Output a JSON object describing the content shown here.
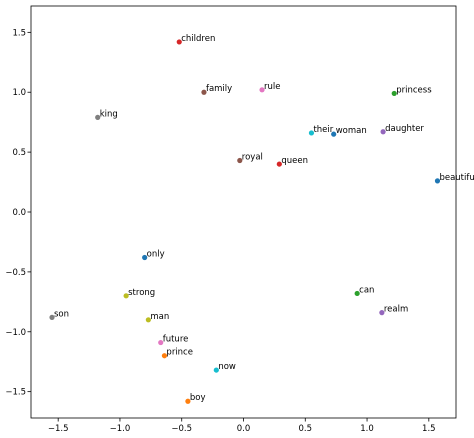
{
  "chart_data": {
    "type": "scatter",
    "title": "",
    "xlabel": "",
    "ylabel": "",
    "xlim": [
      -1.72,
      1.72
    ],
    "ylim": [
      -1.72,
      1.72
    ],
    "grid": false,
    "x_ticks": [
      -1.5,
      -1.0,
      -0.5,
      0.0,
      0.5,
      1.0,
      1.5
    ],
    "x_tick_labels": [
      "−1.5",
      "−1.0",
      "−0.5",
      "0.0",
      "0.5",
      "1.0",
      "1.5"
    ],
    "y_ticks": [
      1.5,
      1.0,
      0.5,
      0.0,
      -0.5,
      -1.0,
      -1.5
    ],
    "y_tick_labels": [
      "1.5",
      "1.0",
      "0.5",
      "0.0",
      "−0.5",
      "−1.0",
      "−1.5"
    ],
    "points": [
      {
        "label": "children",
        "x": -0.52,
        "y": 1.42,
        "color": "#d62728"
      },
      {
        "label": "family",
        "x": -0.32,
        "y": 1.0,
        "color": "#8c564b"
      },
      {
        "label": "rule",
        "x": 0.15,
        "y": 1.02,
        "color": "#e377c2"
      },
      {
        "label": "princess",
        "x": 1.22,
        "y": 0.99,
        "color": "#2ca02c"
      },
      {
        "label": "king",
        "x": -1.18,
        "y": 0.79,
        "color": "#7f7f7f"
      },
      {
        "label": "their",
        "x": 0.55,
        "y": 0.66,
        "color": "#17becf"
      },
      {
        "label": "woman",
        "x": 0.73,
        "y": 0.65,
        "color": "#1f77b4"
      },
      {
        "label": "daughter",
        "x": 1.13,
        "y": 0.67,
        "color": "#9467bd"
      },
      {
        "label": "royal",
        "x": -0.03,
        "y": 0.43,
        "color": "#8c564b"
      },
      {
        "label": "queen",
        "x": 0.29,
        "y": 0.4,
        "color": "#d62728"
      },
      {
        "label": "beautiful",
        "x": 1.57,
        "y": 0.26,
        "color": "#1f77b4"
      },
      {
        "label": "only",
        "x": -0.8,
        "y": -0.38,
        "color": "#1f77b4"
      },
      {
        "label": "strong",
        "x": -0.95,
        "y": -0.7,
        "color": "#bcbd22"
      },
      {
        "label": "can",
        "x": 0.92,
        "y": -0.68,
        "color": "#2ca02c"
      },
      {
        "label": "son",
        "x": -1.55,
        "y": -0.88,
        "color": "#7f7f7f"
      },
      {
        "label": "man",
        "x": -0.77,
        "y": -0.9,
        "color": "#bcbd22"
      },
      {
        "label": "realm",
        "x": 1.12,
        "y": -0.84,
        "color": "#9467bd"
      },
      {
        "label": "future",
        "x": -0.67,
        "y": -1.09,
        "color": "#e377c2"
      },
      {
        "label": "prince",
        "x": -0.64,
        "y": -1.2,
        "color": "#ff7f0e"
      },
      {
        "label": "now",
        "x": -0.22,
        "y": -1.32,
        "color": "#17becf"
      },
      {
        "label": "boy",
        "x": -0.45,
        "y": -1.58,
        "color": "#ff7f0e"
      }
    ]
  }
}
